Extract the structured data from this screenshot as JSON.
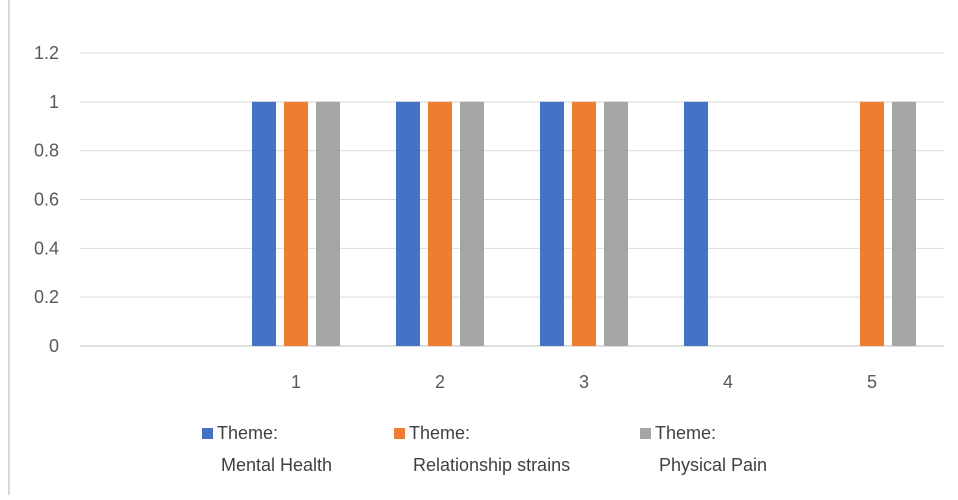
{
  "chart_data": {
    "type": "bar",
    "title": "",
    "xlabel": "",
    "ylabel": "",
    "categories": [
      "",
      "1",
      "2",
      "3",
      "4",
      "5"
    ],
    "ylim": [
      0,
      1.2
    ],
    "yticks": [
      "0",
      "0.2",
      "0.4",
      "0.6",
      "0.8",
      "1",
      "1.2"
    ],
    "grid": true,
    "legend_position": "bottom",
    "series": [
      {
        "name": "Theme: Mental Health",
        "legend_lines": [
          "Theme:",
          "Mental Health"
        ],
        "color": "#4472c4",
        "values": [
          0,
          1,
          1,
          1,
          1,
          0
        ]
      },
      {
        "name": "Theme: Relationship strains",
        "legend_lines": [
          "Theme:",
          "Relationship strains"
        ],
        "color": "#ed7d31",
        "values": [
          0,
          1,
          1,
          1,
          0,
          1
        ]
      },
      {
        "name": "Theme: Physical Pain",
        "legend_lines": [
          "Theme:",
          "Physical Pain"
        ],
        "color": "#a5a5a5",
        "values": [
          0,
          1,
          1,
          1,
          0,
          1
        ]
      }
    ]
  }
}
